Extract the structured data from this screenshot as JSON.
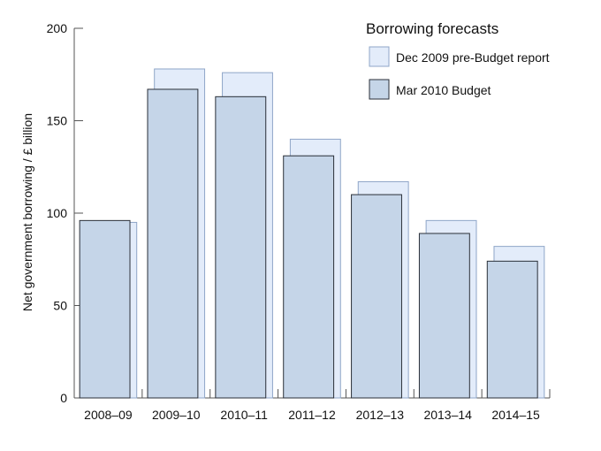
{
  "chart_data": {
    "type": "bar",
    "categories": [
      "2008–09",
      "2009–10",
      "2010–11",
      "2011–12",
      "2012–13",
      "2013–14",
      "2014–15"
    ],
    "series": [
      {
        "name": "Dec 2009 pre-Budget report",
        "values": [
          95,
          178,
          176,
          140,
          117,
          96,
          82
        ],
        "color": "#e3ecfa",
        "stroke": "#8fa6c8"
      },
      {
        "name": "Mar 2010 Budget",
        "values": [
          96,
          167,
          163,
          131,
          110,
          89,
          74
        ],
        "color": "#c5d5e8",
        "stroke": "#2a2f38"
      }
    ],
    "ylabel": "Net government borrowing / £ billion",
    "yticks": [
      0,
      50,
      100,
      150,
      200
    ],
    "ylim": [
      0,
      200
    ],
    "legend": {
      "title": "Borrowing forecasts",
      "position": "top-right"
    },
    "grid": false
  }
}
